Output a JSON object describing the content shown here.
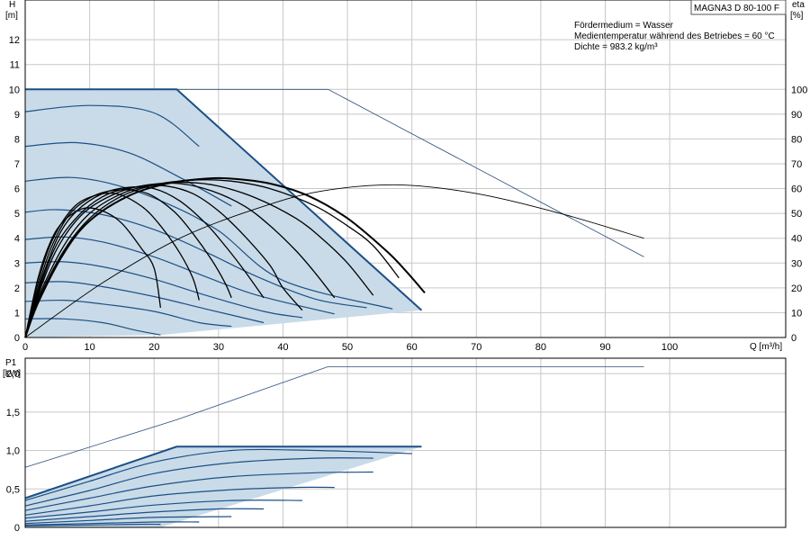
{
  "chart_data": [
    {
      "type": "line",
      "model": "MAGNA3 D 80-100 F",
      "info": [
        "Fördermedium = Wasser",
        "Medientemperatur während des Betriebes = 60 °C",
        "Dichte = 983.2 kg/m³"
      ],
      "xlabel": "Q [m³/h]",
      "ylabel_left": [
        "H",
        "[m]"
      ],
      "ylabel_right": [
        "eta",
        "[%]"
      ],
      "xlim": [
        0,
        118
      ],
      "ylim_left": [
        0,
        13.6
      ],
      "ylim_right": [
        0,
        136
      ],
      "xticks": [
        0,
        10,
        20,
        30,
        40,
        50,
        60,
        70,
        80,
        90,
        100
      ],
      "yticks_left": [
        0,
        1,
        2,
        3,
        4,
        5,
        6,
        7,
        8,
        9,
        10,
        11,
        12
      ],
      "yticks_right": [
        0,
        10,
        20,
        30,
        40,
        50,
        60,
        70,
        80,
        90,
        100
      ],
      "grid": true,
      "colors": {
        "curve": "#1c4f86",
        "area": "#c9dbe8",
        "eta": "#000000"
      },
      "operating_area": [
        [
          0,
          10
        ],
        [
          23.5,
          10
        ],
        [
          61.5,
          1.1
        ],
        [
          21,
          0.1
        ],
        [
          0,
          0
        ]
      ],
      "series": [
        {
          "role": "head",
          "values": [
            [
              0,
              10
            ],
            [
              23.5,
              10
            ],
            [
              61.5,
              1.1
            ]
          ]
        },
        {
          "role": "head",
          "values": [
            [
              0,
              9.1
            ],
            [
              10,
              9.35
            ],
            [
              20,
              9.05
            ],
            [
              27,
              7.7
            ]
          ]
        },
        {
          "role": "head",
          "values": [
            [
              0,
              7.7
            ],
            [
              8,
              7.85
            ],
            [
              16,
              7.45
            ],
            [
              24,
              6.45
            ],
            [
              32,
              5.3
            ]
          ]
        },
        {
          "role": "head",
          "values": [
            [
              0,
              6.3
            ],
            [
              7,
              6.45
            ],
            [
              14,
              6.15
            ],
            [
              22,
              5.4
            ],
            [
              30,
              4.3
            ],
            [
              40,
              2.3
            ],
            [
              57,
              1.15
            ]
          ]
        },
        {
          "role": "head",
          "values": [
            [
              0,
              5.05
            ],
            [
              5,
              5.15
            ],
            [
              12,
              4.95
            ],
            [
              20,
              4.35
            ],
            [
              28,
              3.45
            ],
            [
              36,
              2.45
            ],
            [
              45,
              1.55
            ],
            [
              53,
              1.2
            ]
          ]
        },
        {
          "role": "head",
          "values": [
            [
              0,
              3.95
            ],
            [
              6,
              4.05
            ],
            [
              12,
              3.85
            ],
            [
              20,
              3.25
            ],
            [
              28,
              2.45
            ],
            [
              36,
              1.7
            ],
            [
              48,
              0.95
            ]
          ]
        },
        {
          "role": "head",
          "values": [
            [
              0,
              3.0
            ],
            [
              6,
              3.05
            ],
            [
              12,
              2.85
            ],
            [
              20,
              2.35
            ],
            [
              28,
              1.7
            ],
            [
              37,
              1.05
            ],
            [
              43,
              0.8
            ]
          ]
        },
        {
          "role": "head",
          "values": [
            [
              0,
              2.2
            ],
            [
              6,
              2.25
            ],
            [
              12,
              2.05
            ],
            [
              20,
              1.65
            ],
            [
              28,
              1.15
            ],
            [
              37,
              0.6
            ]
          ]
        },
        {
          "role": "head",
          "values": [
            [
              0,
              1.45
            ],
            [
              6,
              1.5
            ],
            [
              12,
              1.35
            ],
            [
              20,
              1.05
            ],
            [
              27,
              0.6
            ],
            [
              32,
              0.45
            ]
          ]
        },
        {
          "role": "head",
          "values": [
            [
              0,
              0.75
            ],
            [
              6,
              0.75
            ],
            [
              12,
              0.6
            ],
            [
              17,
              0.3
            ],
            [
              21,
              0.1
            ]
          ]
        },
        {
          "role": "head",
          "values": [
            [
              23.5,
              10
            ],
            [
              47,
              10
            ],
            [
              96,
              3.25
            ]
          ]
        },
        {
          "role": "eta",
          "values": [
            [
              0,
              0
            ],
            [
              12,
              22
            ],
            [
              24,
              40
            ],
            [
              36,
              52
            ],
            [
              46,
              59
            ],
            [
              58,
              61.5
            ],
            [
              70,
              58
            ],
            [
              83,
              50
            ],
            [
              96,
              40
            ]
          ]
        },
        {
          "role": "eta",
          "values": [
            [
              0,
              0
            ],
            [
              2,
              14
            ],
            [
              6,
              34
            ],
            [
              10,
              47
            ],
            [
              16,
              57
            ],
            [
              22,
              62
            ],
            [
              28,
              64
            ],
            [
              32,
              64
            ],
            [
              38,
              62
            ],
            [
              44,
              57
            ],
            [
              50,
              48
            ],
            [
              56,
              35
            ],
            [
              59,
              27
            ],
            [
              62,
              18
            ]
          ]
        },
        {
          "role": "eta",
          "values": [
            [
              0,
              0
            ],
            [
              2,
              15
            ],
            [
              6,
              35
            ],
            [
              10,
              48
            ],
            [
              15,
              57
            ],
            [
              21,
              62
            ],
            [
              27,
              63.5
            ],
            [
              32,
              63
            ],
            [
              38,
              60
            ],
            [
              45,
              53
            ],
            [
              50,
              45
            ],
            [
              54,
              37
            ],
            [
              58,
              24
            ]
          ]
        },
        {
          "role": "eta",
          "values": [
            [
              0,
              0
            ],
            [
              2,
              16
            ],
            [
              6,
              37
            ],
            [
              10,
              50
            ],
            [
              15,
              58
            ],
            [
              20,
              61.5
            ],
            [
              25,
              62.5
            ],
            [
              30,
              61
            ],
            [
              36,
              56
            ],
            [
              42,
              48
            ],
            [
              46,
              40
            ],
            [
              50,
              30
            ],
            [
              54,
              17
            ]
          ]
        },
        {
          "role": "eta",
          "values": [
            [
              0,
              0
            ],
            [
              2,
              17
            ],
            [
              5,
              36
            ],
            [
              9,
              50
            ],
            [
              14,
              58
            ],
            [
              19,
              61.5
            ],
            [
              24,
              62
            ],
            [
              29,
              59
            ],
            [
              34,
              53
            ],
            [
              38,
              45
            ],
            [
              42,
              35
            ],
            [
              45,
              26
            ],
            [
              48,
              16
            ]
          ]
        },
        {
          "role": "eta",
          "values": [
            [
              0,
              0
            ],
            [
              2,
              18
            ],
            [
              5,
              38
            ],
            [
              9,
              51
            ],
            [
              13,
              58
            ],
            [
              18,
              61
            ],
            [
              22,
              61
            ],
            [
              26,
              58
            ],
            [
              30,
              51
            ],
            [
              34,
              41
            ],
            [
              38,
              29
            ],
            [
              40,
              20
            ],
            [
              43,
              11
            ]
          ]
        },
        {
          "role": "eta",
          "values": [
            [
              0,
              0
            ],
            [
              2,
              19
            ],
            [
              5,
              40
            ],
            [
              8,
              51
            ],
            [
              12,
              58
            ],
            [
              16,
              60.5
            ],
            [
              20,
              60
            ],
            [
              24,
              55
            ],
            [
              28,
              46
            ],
            [
              31,
              37
            ],
            [
              34,
              27
            ],
            [
              37,
              16
            ]
          ]
        },
        {
          "role": "eta",
          "values": [
            [
              0,
              0
            ],
            [
              2,
              20
            ],
            [
              4,
              36
            ],
            [
              7,
              50
            ],
            [
              11,
              57.5
            ],
            [
              15,
              59.5
            ],
            [
              19,
              58
            ],
            [
              23,
              51
            ],
            [
              26,
              42
            ],
            [
              29,
              31
            ],
            [
              31,
              22
            ],
            [
              32,
              16
            ]
          ]
        },
        {
          "role": "eta",
          "values": [
            [
              0,
              0
            ],
            [
              2,
              22
            ],
            [
              4,
              38
            ],
            [
              7,
              51
            ],
            [
              10,
              56.5
            ],
            [
              14,
              58
            ],
            [
              18,
              53
            ],
            [
              21,
              45
            ],
            [
              24,
              34
            ],
            [
              26,
              24
            ],
            [
              27,
              15
            ]
          ]
        },
        {
          "role": "eta",
          "values": [
            [
              0,
              0
            ],
            [
              2,
              24
            ],
            [
              4,
              39
            ],
            [
              6,
              47
            ],
            [
              9,
              52
            ],
            [
              12,
              51
            ],
            [
              15,
              46
            ],
            [
              18,
              36
            ],
            [
              20,
              28
            ],
            [
              21,
              12
            ]
          ]
        }
      ]
    },
    {
      "type": "line",
      "ylabel": [
        "P1",
        "[kW]"
      ],
      "xlim": [
        0,
        118
      ],
      "ylim": [
        0,
        2.2
      ],
      "yticks": [
        "0",
        "0,5",
        "1,0",
        "1,5",
        "2,0"
      ],
      "ytick_values": [
        0,
        0.5,
        1.0,
        1.5,
        2.0
      ],
      "grid": true,
      "operating_area": [
        [
          0,
          0.38
        ],
        [
          23.5,
          1.05
        ],
        [
          61.5,
          1.05
        ],
        [
          21,
          0
        ],
        [
          0,
          0
        ]
      ],
      "series": [
        {
          "role": "power",
          "values": [
            [
              0,
              0.38
            ],
            [
              23.5,
              1.05
            ],
            [
              61.5,
              1.05
            ]
          ]
        },
        {
          "role": "power",
          "values": [
            [
              0,
              0.35
            ],
            [
              10,
              0.6
            ],
            [
              20,
              0.85
            ],
            [
              32,
              1.0
            ],
            [
              45,
              1.0
            ],
            [
              60,
              0.96
            ]
          ]
        },
        {
          "role": "power",
          "values": [
            [
              0,
              0.28
            ],
            [
              10,
              0.48
            ],
            [
              20,
              0.7
            ],
            [
              32,
              0.84
            ],
            [
              45,
              0.9
            ],
            [
              54,
              0.9
            ]
          ]
        },
        {
          "role": "power",
          "values": [
            [
              0,
              0.22
            ],
            [
              10,
              0.38
            ],
            [
              20,
              0.54
            ],
            [
              32,
              0.66
            ],
            [
              45,
              0.71
            ],
            [
              54,
              0.72
            ]
          ]
        },
        {
          "role": "power",
          "values": [
            [
              0,
              0.16
            ],
            [
              10,
              0.28
            ],
            [
              20,
              0.41
            ],
            [
              32,
              0.49
            ],
            [
              42,
              0.52
            ],
            [
              48,
              0.52
            ]
          ]
        },
        {
          "role": "power",
          "values": [
            [
              0,
              0.12
            ],
            [
              10,
              0.2
            ],
            [
              20,
              0.29
            ],
            [
              32,
              0.35
            ],
            [
              43,
              0.35
            ]
          ]
        },
        {
          "role": "power",
          "values": [
            [
              0,
              0.08
            ],
            [
              10,
              0.14
            ],
            [
              20,
              0.2
            ],
            [
              30,
              0.24
            ],
            [
              37,
              0.24
            ]
          ]
        },
        {
          "role": "power",
          "values": [
            [
              0,
              0.05
            ],
            [
              10,
              0.09
            ],
            [
              20,
              0.13
            ],
            [
              32,
              0.14
            ]
          ]
        },
        {
          "role": "power",
          "values": [
            [
              0,
              0.03
            ],
            [
              10,
              0.05
            ],
            [
              20,
              0.07
            ],
            [
              27,
              0.07
            ]
          ]
        },
        {
          "role": "power",
          "values": [
            [
              0,
              0.02
            ],
            [
              10,
              0.03
            ],
            [
              17,
              0.04
            ],
            [
              21,
              0.04
            ]
          ]
        },
        {
          "role": "power",
          "values": [
            [
              0,
              0.78
            ],
            [
              23.5,
              1.4
            ],
            [
              47,
              2.09
            ],
            [
              96,
              2.09
            ]
          ]
        }
      ]
    }
  ]
}
